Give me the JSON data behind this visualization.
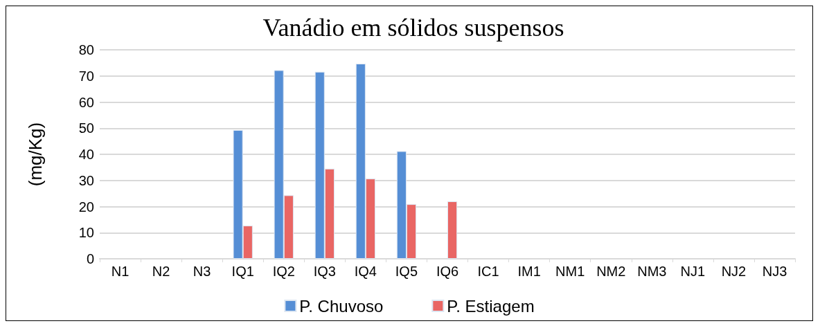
{
  "chart_data": {
    "type": "bar",
    "title": "Vanádio em sólidos suspensos",
    "ylabel": "(mg/Kg)",
    "categories": [
      "N1",
      "N2",
      "N3",
      "IQ1",
      "IQ2",
      "IQ3",
      "IQ4",
      "IQ5",
      "IQ6",
      "IC1",
      "IM1",
      "NM1",
      "NM2",
      "NM3",
      "NJ1",
      "NJ2",
      "NJ3"
    ],
    "series": [
      {
        "name": "P. Chuvoso",
        "color": "#558ed5",
        "values": [
          null,
          null,
          null,
          49.3,
          72.2,
          71.6,
          74.7,
          41.2,
          null,
          null,
          null,
          null,
          null,
          null,
          null,
          null,
          null
        ]
      },
      {
        "name": "P. Estiagem",
        "color": "#e96664",
        "values": [
          null,
          null,
          null,
          12.7,
          24.3,
          34.5,
          30.7,
          20.9,
          22.0,
          null,
          null,
          null,
          null,
          null,
          null,
          null,
          null
        ]
      }
    ],
    "ylim": [
      0,
      80
    ],
    "yticks": [
      0,
      10,
      20,
      30,
      40,
      50,
      60,
      70,
      80
    ],
    "grid": "y",
    "legend": "bottom"
  }
}
